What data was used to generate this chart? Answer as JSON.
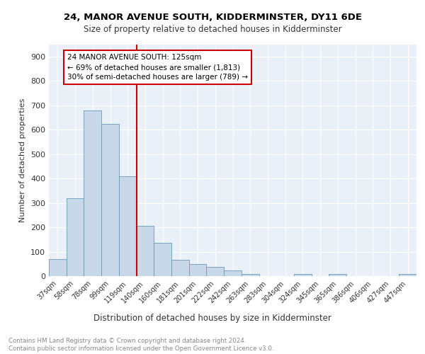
{
  "title_line1": "24, MANOR AVENUE SOUTH, KIDDERMINSTER, DY11 6DE",
  "title_line2": "Size of property relative to detached houses in Kidderminster",
  "xlabel": "Distribution of detached houses by size in Kidderminster",
  "ylabel": "Number of detached properties",
  "categories": [
    "37sqm",
    "58sqm",
    "78sqm",
    "99sqm",
    "119sqm",
    "140sqm",
    "160sqm",
    "181sqm",
    "201sqm",
    "222sqm",
    "242sqm",
    "263sqm",
    "283sqm",
    "304sqm",
    "324sqm",
    "345sqm",
    "365sqm",
    "386sqm",
    "406sqm",
    "427sqm",
    "447sqm"
  ],
  "values": [
    70,
    320,
    680,
    625,
    410,
    207,
    137,
    68,
    50,
    38,
    22,
    10,
    0,
    0,
    8,
    0,
    10,
    0,
    0,
    0,
    8
  ],
  "bar_color": "#c8d8e8",
  "bar_edge_color": "#6699bb",
  "vline_x_index": 4.5,
  "vline_color": "#cc0000",
  "annotation_text": "24 MANOR AVENUE SOUTH: 125sqm\n← 69% of detached houses are smaller (1,813)\n30% of semi-detached houses are larger (789) →",
  "annotation_box_color": "#ffffff",
  "annotation_box_edge": "#cc0000",
  "ylim": [
    0,
    950
  ],
  "yticks": [
    0,
    100,
    200,
    300,
    400,
    500,
    600,
    700,
    800,
    900
  ],
  "footer_text": "Contains HM Land Registry data © Crown copyright and database right 2024.\nContains public sector information licensed under the Open Government Licence v3.0.",
  "plot_bg_color": "#eaf0f8"
}
